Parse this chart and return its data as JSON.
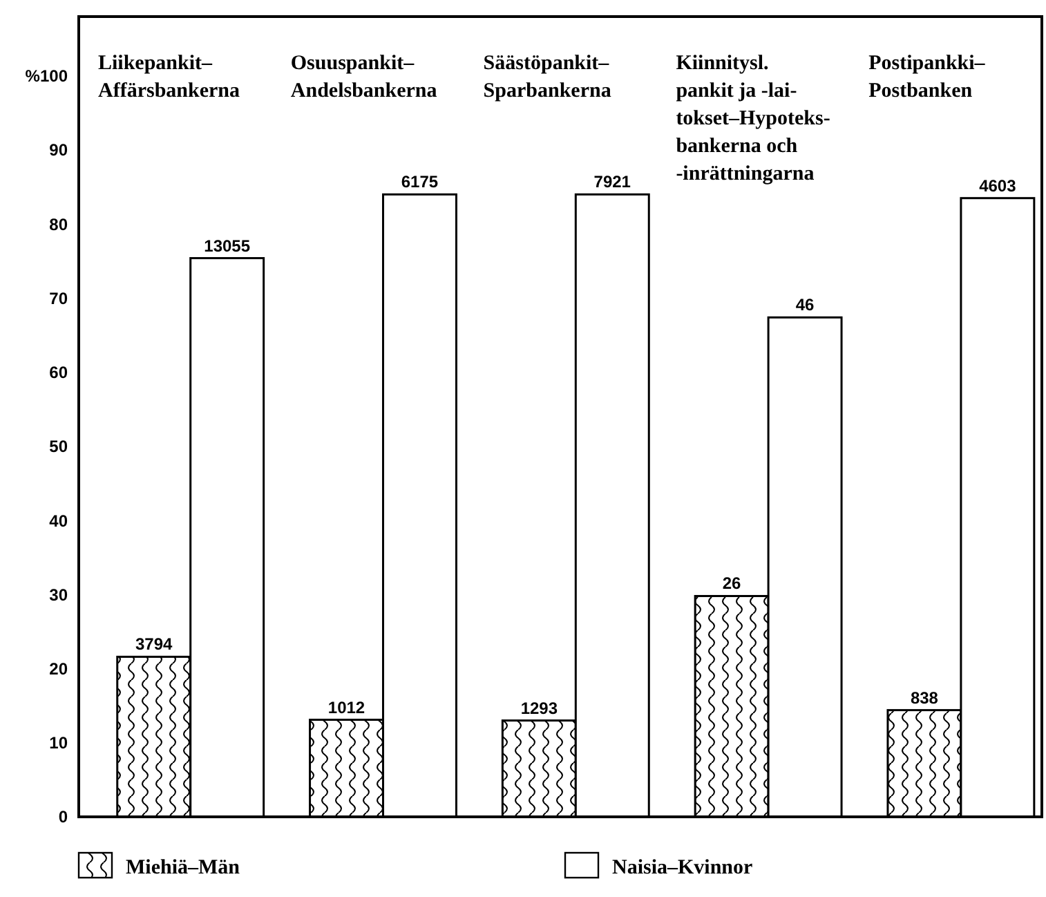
{
  "chart_data": {
    "type": "bar",
    "categories": [
      "Liikepankit–\nAffärsbankerna",
      "Osuuspankit–\nAndelsbankerna",
      "Säästöpankit–\nSparbankerna",
      "Kiinnitysl.\npankit ja -lai-\ntokset–Hypoteks-\nbankerna och\n-inrättningarna",
      "Postipankki–\nPostbanken"
    ],
    "series": [
      {
        "name": "Miehiä–Män",
        "color": "#000000",
        "values": [
          21.6,
          13.1,
          13.0,
          29.8,
          14.4
        ]
      },
      {
        "name": "Naisia–Kvinnor",
        "color": "#ffffff",
        "values": [
          75.4,
          84.0,
          84.0,
          67.4,
          83.5
        ]
      }
    ],
    "annotations": [
      "3794",
      "13055",
      "1012",
      "6175",
      "1293",
      "7921",
      "26",
      "46",
      "838",
      "4603"
    ],
    "ylim": [
      0,
      108
    ],
    "yticks": [
      0,
      10,
      20,
      30,
      40,
      50,
      60,
      70,
      80,
      90,
      {
        "value": 100,
        "label": "%100"
      }
    ],
    "grid": false,
    "legend": "bottom"
  }
}
